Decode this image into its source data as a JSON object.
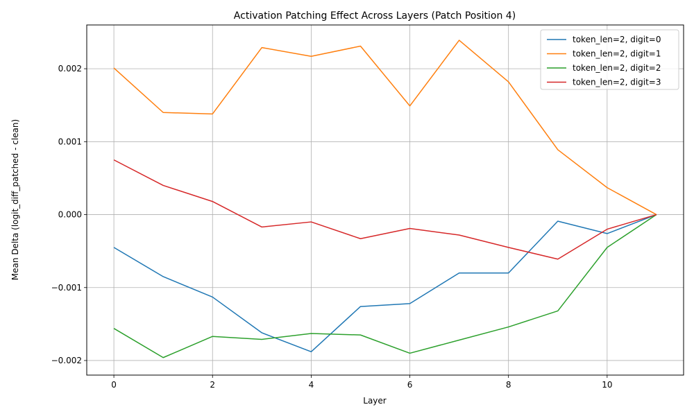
{
  "chart_data": {
    "type": "line",
    "title": "Activation Patching Effect Across Layers (Patch Position 4)",
    "xlabel": "Layer",
    "ylabel": "Mean Delta (logit_diff_patched - clean)",
    "xlim": [
      -0.55,
      11.55
    ],
    "ylim": [
      -0.0022,
      0.0026
    ],
    "xticks": [
      0,
      2,
      4,
      6,
      8,
      10
    ],
    "xtick_labels": [
      "0",
      "2",
      "4",
      "6",
      "8",
      "10"
    ],
    "yticks": [
      -0.002,
      -0.001,
      0.0,
      0.001,
      0.002
    ],
    "ytick_labels": [
      "−0.002",
      "−0.001",
      "0.000",
      "0.001",
      "0.002"
    ],
    "grid": true,
    "legend_position": "top-right",
    "x": [
      0,
      1,
      2,
      3,
      4,
      5,
      6,
      7,
      8,
      9,
      10,
      11
    ],
    "series": [
      {
        "name": "token_len=2, digit=0",
        "color": "#1f77b4",
        "values": [
          -0.00045,
          -0.00085,
          -0.00113,
          -0.00162,
          -0.00188,
          -0.00126,
          -0.00122,
          -0.0008,
          -0.0008,
          -9e-05,
          -0.00026,
          0.0
        ]
      },
      {
        "name": "token_len=2, digit=1",
        "color": "#ff7f0e",
        "values": [
          0.00201,
          0.0014,
          0.00138,
          0.00229,
          0.00217,
          0.00231,
          0.00149,
          0.00239,
          0.00182,
          0.00089,
          0.00037,
          0.0
        ]
      },
      {
        "name": "token_len=2, digit=2",
        "color": "#2ca02c",
        "values": [
          -0.00156,
          -0.00196,
          -0.00167,
          -0.00171,
          -0.00163,
          -0.00165,
          -0.0019,
          -0.00172,
          -0.00154,
          -0.00132,
          -0.00045,
          0.0
        ]
      },
      {
        "name": "token_len=2, digit=3",
        "color": "#d62728",
        "values": [
          0.00075,
          0.0004,
          0.00018,
          -0.00017,
          -0.0001,
          -0.00033,
          -0.00019,
          -0.00028,
          -0.00045,
          -0.00061,
          -0.0002,
          0.0
        ]
      }
    ]
  }
}
